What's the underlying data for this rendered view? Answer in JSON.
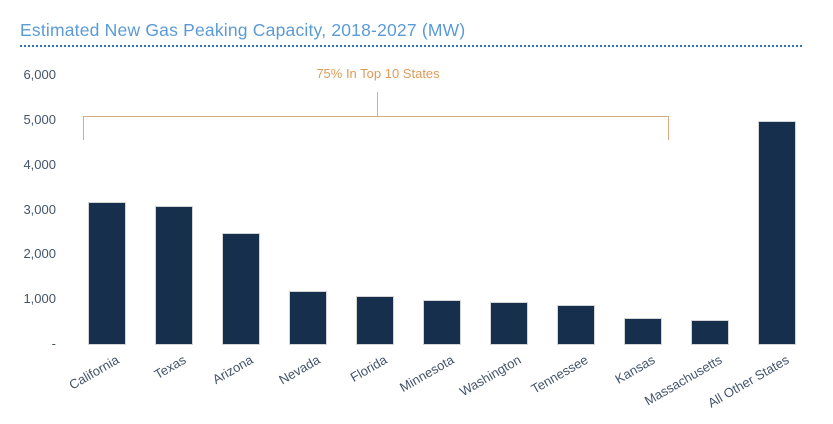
{
  "title": "Estimated New Gas Peaking Capacity, 2018-2027 (MW)",
  "annotation": {
    "label": "75% In Top 10 States"
  },
  "y_axis": {
    "tick_labels": [
      "6,000",
      "5,000",
      "4,000",
      "3,000",
      "2,000",
      "1,000",
      "-"
    ],
    "tick_values": [
      6000,
      5000,
      4000,
      3000,
      2000,
      1000,
      0
    ]
  },
  "chart_data": {
    "type": "bar",
    "title": "Estimated New Gas Peaking Capacity, 2018-2027 (MW)",
    "categories": [
      "California",
      "Texas",
      "Arizona",
      "Nevada",
      "Florida",
      "Minnesota",
      "Washington",
      "Tennessee",
      "Kansas",
      "Massachusetts",
      "All Other States"
    ],
    "values": [
      3200,
      3100,
      2500,
      1200,
      1100,
      1000,
      950,
      900,
      600,
      550,
      5000
    ],
    "xlabel": "",
    "ylabel": "",
    "ylim": [
      0,
      6000
    ],
    "grid": false,
    "legend": false,
    "annotations": [
      {
        "text": "75% In Top 10 States",
        "type": "bracket",
        "spans_categories": [
          "California",
          "Massachusetts"
        ]
      }
    ]
  },
  "colors": {
    "title": "#5B9BD5",
    "title_rule": "#2E74B5",
    "axis_label": "#44546A",
    "bar_fill": "#152F4D",
    "bar_border": "#D4D4D4",
    "annotation_text": "#DD9B57",
    "bracket_line": "#D9AB80"
  }
}
